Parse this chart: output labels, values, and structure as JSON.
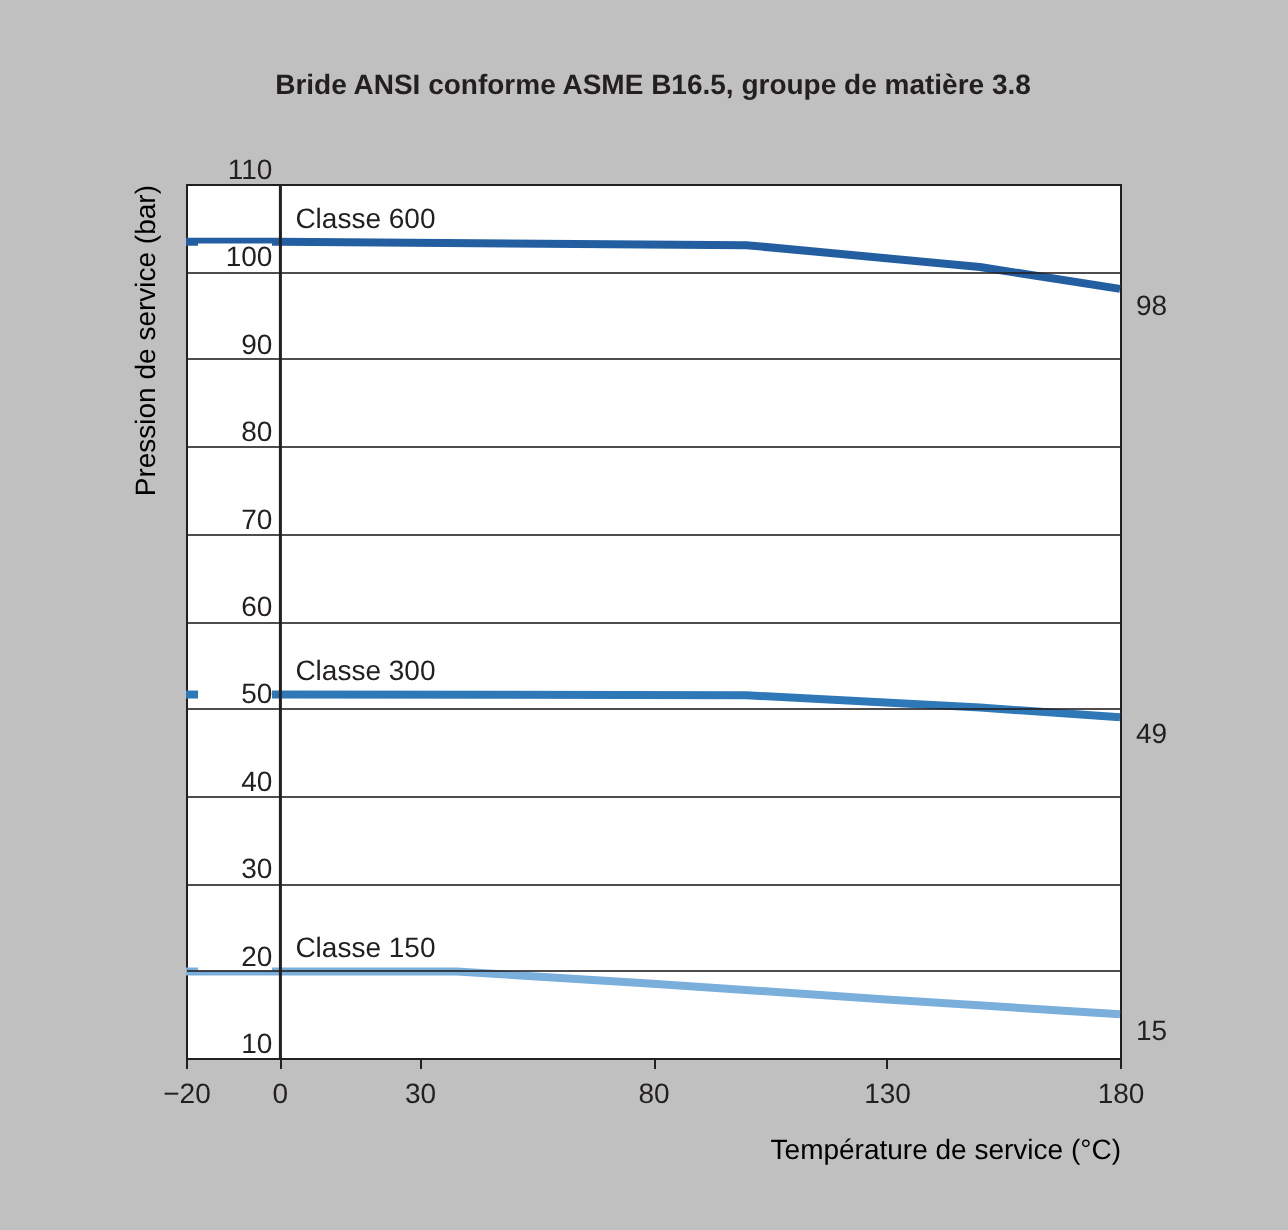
{
  "chart_data": {
    "type": "line",
    "title": "Bride ANSI conforme ASME B16.5, groupe de matière 3.8",
    "xlabel": "Température de service (°C)",
    "ylabel": "Pression de service (bar)",
    "xlim": [
      -20,
      180
    ],
    "xticks": [
      -20,
      0,
      30,
      80,
      130,
      180
    ],
    "ylim": [
      10,
      110
    ],
    "yticks": [
      10,
      20,
      30,
      40,
      50,
      60,
      70,
      80,
      90,
      100,
      110
    ],
    "grid": "y",
    "legend": false,
    "marker": "none",
    "line_style": "solid",
    "series": [
      {
        "name": "Classe 600",
        "color": "#235fa0",
        "x": [
          -20,
          0,
          100,
          150,
          180
        ],
        "values": [
          103.4,
          103.4,
          103,
          100.5,
          98
        ],
        "value_labels": [
          null,
          null,
          null,
          null,
          "98"
        ]
      },
      {
        "name": "Classe 300",
        "color": "#2f78b8",
        "x": [
          -20,
          0,
          100,
          150,
          180
        ],
        "values": [
          51.6,
          51.6,
          51.5,
          50.1,
          49
        ],
        "value_labels": [
          null,
          null,
          null,
          null,
          "49"
        ]
      },
      {
        "name": "Classe 150",
        "color": "#7aaedb",
        "x": [
          -20,
          0,
          38,
          80,
          130,
          180
        ],
        "values": [
          19.9,
          19.9,
          19.9,
          18.5,
          16.7,
          15
        ],
        "value_labels": [
          null,
          null,
          null,
          null,
          null,
          "15"
        ]
      }
    ]
  }
}
